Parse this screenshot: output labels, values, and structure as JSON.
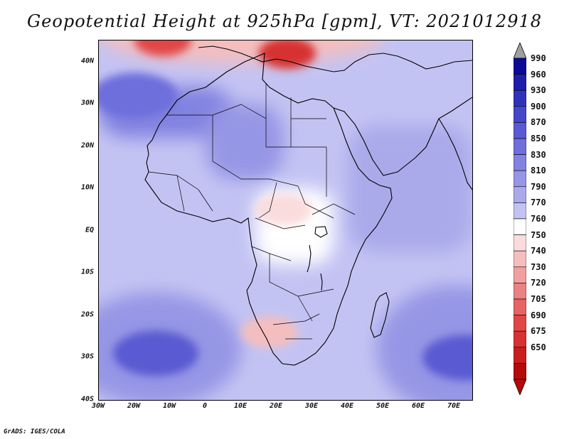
{
  "title": "Geopotential Height at 925hPa [gpm], VT: 2021012918",
  "credit": "GrADS: IGES/COLA",
  "map": {
    "projection": "latlon",
    "lon_range": [
      -30,
      75
    ],
    "lat_range": [
      -40,
      45
    ],
    "lat_ticks": [
      {
        "lat": 40,
        "label": "40N"
      },
      {
        "lat": 30,
        "label": "30N"
      },
      {
        "lat": 20,
        "label": "20N"
      },
      {
        "lat": 10,
        "label": "10N"
      },
      {
        "lat": 0,
        "label": "EQ"
      },
      {
        "lat": -10,
        "label": "10S"
      },
      {
        "lat": -20,
        "label": "20S"
      },
      {
        "lat": -30,
        "label": "30S"
      },
      {
        "lat": -40,
        "label": "40S"
      }
    ],
    "lon_ticks": [
      {
        "lon": -30,
        "label": "30W"
      },
      {
        "lon": -20,
        "label": "20W"
      },
      {
        "lon": -10,
        "label": "10W"
      },
      {
        "lon": 0,
        "label": "0"
      },
      {
        "lon": 10,
        "label": "10E"
      },
      {
        "lon": 20,
        "label": "20E"
      },
      {
        "lon": 30,
        "label": "30E"
      },
      {
        "lon": 40,
        "label": "40E"
      },
      {
        "lon": 50,
        "label": "50E"
      },
      {
        "lon": 60,
        "label": "60E"
      },
      {
        "lon": 70,
        "label": "70E"
      }
    ],
    "field": {
      "variable": "geopotential height",
      "level_hpa": 925,
      "unit": "gpm",
      "highs": [
        {
          "name": "south-atlantic-high",
          "lon": -14,
          "lat": -29,
          "value": 895
        },
        {
          "name": "south-indian-high",
          "lon": 73,
          "lat": -30,
          "value": 880
        },
        {
          "name": "azores-ridge",
          "lon": -20,
          "lat": 32,
          "value": 860
        }
      ],
      "lows": [
        {
          "name": "mediterranean-low",
          "lon": 23,
          "lat": 42,
          "value": 680
        },
        {
          "name": "north-atlantic-low",
          "lon": -12,
          "lat": 45,
          "value": 700
        },
        {
          "name": "kalahari-low",
          "lon": 18,
          "lat": -24,
          "value": 745
        },
        {
          "name": "equatorial-trough",
          "lon": 22,
          "lat": 5,
          "value": 755
        }
      ]
    }
  },
  "colorbar": {
    "labels": [
      "990",
      "960",
      "930",
      "900",
      "870",
      "850",
      "830",
      "810",
      "790",
      "770",
      "760",
      "750",
      "740",
      "730",
      "720",
      "705",
      "690",
      "675",
      "650"
    ],
    "colors": [
      "#0a0a96",
      "#1e1eaa",
      "#3232b9",
      "#4646c8",
      "#5a5ad2",
      "#6e6edc",
      "#8282e1",
      "#9696e6",
      "#aaaaeb",
      "#c3c3f3",
      "#ffffff",
      "#fadcdc",
      "#f5bebe",
      "#f0a0a0",
      "#eb8282",
      "#e66464",
      "#e14646",
      "#d73232",
      "#c81e1e",
      "#b40a0a"
    ],
    "over_color": "#a0a0a0",
    "under_color": "#b40a0a"
  }
}
